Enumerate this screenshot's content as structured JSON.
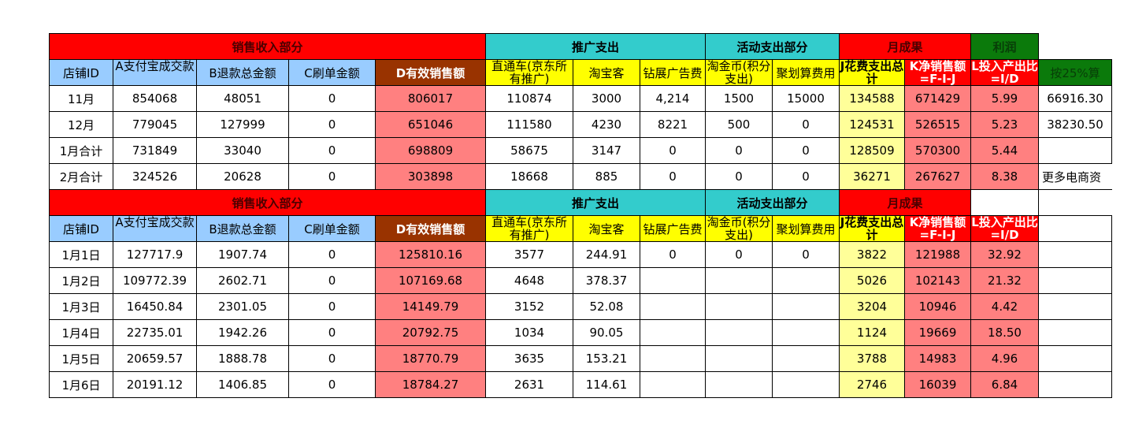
{
  "groups": [
    {
      "label": "销售收入部分",
      "span": 5,
      "cls": "red"
    },
    {
      "label": "推广支出",
      "span": 3,
      "cls": "cyan"
    },
    {
      "label": "活动支出部分",
      "span": 2,
      "cls": "cyan"
    },
    {
      "label": "月成果",
      "span": 2,
      "cls": "red"
    },
    {
      "label": "利润",
      "span": 1,
      "cls": "green"
    }
  ],
  "columns": [
    "店铺ID",
    "A支付宝成交款",
    "B退款总金额",
    "C刷单金额",
    "D有效销售额",
    "直通车(京东所有推广)",
    "淘宝客",
    "钻展广告费",
    "淘金币(积分支出)",
    "聚划算费用",
    "J花费支出总计",
    "K净销售额=F-I-J",
    "L投入产出比=I/D",
    "按25%算"
  ],
  "colors": {
    "header_red": "#ff0000",
    "cyan": "#33cccc",
    "green": "#0b7a0b",
    "light_blue": "#99ccff",
    "brown": "#993300",
    "yellow": "#ffff00",
    "light_yellow": "#ffff99",
    "pink": "#ff8080"
  },
  "monthly_rows": [
    [
      "11月",
      "854068",
      "48051",
      "0",
      "806017",
      "110874",
      "3000",
      "4,214",
      "1500",
      "15000",
      "134588",
      "671429",
      "5.99",
      "66916.30"
    ],
    [
      "12月",
      "779045",
      "127999",
      "0",
      "651046",
      "111580",
      "4230",
      "8221",
      "500",
      "0",
      "124531",
      "526515",
      "5.23",
      "38230.50"
    ],
    [
      "1月合计",
      "731849",
      "33040",
      "0",
      "698809",
      "58675",
      "3147",
      "0",
      "0",
      "0",
      "128509",
      "570300",
      "5.44",
      ""
    ],
    [
      "2月合计",
      "324526",
      "20628",
      "0",
      "303898",
      "18668",
      "885",
      "0",
      "0",
      "0",
      "36271",
      "267627",
      "8.38",
      "更多电商资"
    ]
  ],
  "daily_rows": [
    [
      "1月1日",
      "127717.9",
      "1907.74",
      "0",
      "125810.16",
      "3577",
      "244.91",
      "0",
      "0",
      "0",
      "3822",
      "121988",
      "32.92",
      ""
    ],
    [
      "1月2日",
      "109772.39",
      "2602.71",
      "0",
      "107169.68",
      "4648",
      "378.37",
      "",
      "",
      "",
      "5026",
      "102143",
      "21.32",
      ""
    ],
    [
      "1月3日",
      "16450.84",
      "2301.05",
      "0",
      "14149.79",
      "3152",
      "52.08",
      "",
      "",
      "",
      "3204",
      "10946",
      "4.42",
      ""
    ],
    [
      "1月4日",
      "22735.01",
      "1942.26",
      "0",
      "20792.75",
      "1034",
      "90.05",
      "",
      "",
      "",
      "1124",
      "19669",
      "18.50",
      ""
    ],
    [
      "1月5日",
      "20659.57",
      "1888.78",
      "0",
      "18770.79",
      "3635",
      "153.21",
      "",
      "",
      "",
      "3788",
      "14983",
      "4.96",
      ""
    ],
    [
      "1月6日",
      "20191.12",
      "1406.85",
      "0",
      "18784.27",
      "2631",
      "114.61",
      "",
      "",
      "",
      "2746",
      "16039",
      "6.84",
      ""
    ]
  ]
}
